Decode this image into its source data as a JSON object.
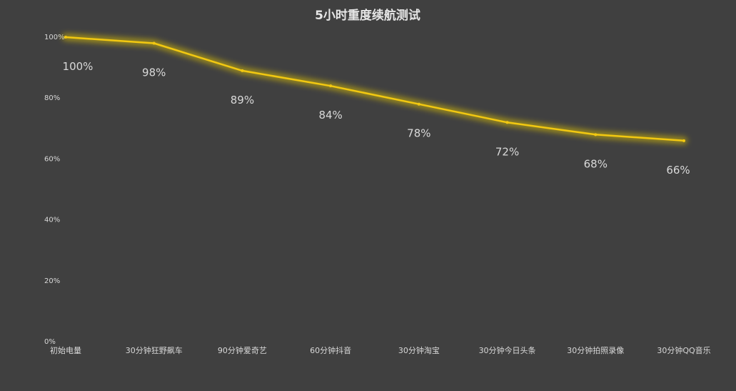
{
  "chart_data": {
    "type": "line",
    "title": "5小时重度续航测试",
    "xlabel": "",
    "ylabel": "",
    "categories": [
      "初始电量",
      "30分钟狂野飙车",
      "90分钟爱奇艺",
      "60分钟抖音",
      "30分钟淘宝",
      "30分钟今日头条",
      "30分钟拍照录像",
      "30分钟QQ音乐"
    ],
    "series": [
      {
        "values": [
          100,
          98,
          89,
          84,
          78,
          72,
          68,
          66
        ],
        "labels": [
          "100%",
          "98%",
          "89%",
          "84%",
          "78%",
          "72%",
          "68%",
          "66%"
        ]
      }
    ],
    "yticks": [
      "0%",
      "20%",
      "40%",
      "60%",
      "80%",
      "100%"
    ],
    "ylim": [
      0,
      100
    ],
    "grid": false,
    "legend": "none",
    "colors": {
      "background": "#404040",
      "line": "#F2C811",
      "glow": "#E6C800",
      "text": "#D9D9D9",
      "title": "#E6E6E6"
    }
  }
}
